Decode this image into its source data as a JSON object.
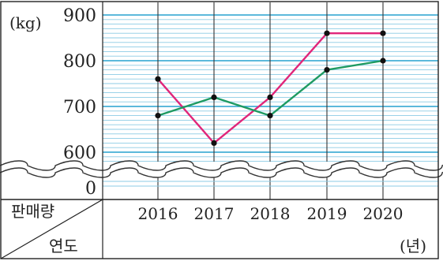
{
  "chart_data": {
    "type": "line",
    "y_unit": "(kg)",
    "x_unit": "(년)",
    "y_ticks": [
      "900",
      "800",
      "700",
      "600",
      "0"
    ],
    "ylim": [
      600,
      900
    ],
    "y_axis_break": true,
    "categories": [
      "2016",
      "2017",
      "2018",
      "2019",
      "2020"
    ],
    "series": [
      {
        "color": "#e0267a",
        "values": [
          760,
          620,
          720,
          860,
          860
        ]
      },
      {
        "color": "#1e9a62",
        "values": [
          680,
          720,
          680,
          780,
          800
        ]
      }
    ],
    "header_top": "판매량",
    "header_bottom": "연도",
    "grid": true
  }
}
